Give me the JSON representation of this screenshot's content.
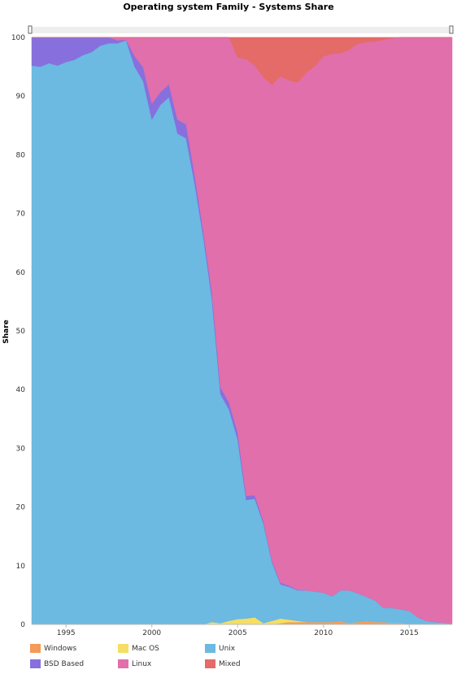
{
  "chart_data": {
    "type": "area",
    "stacked": "percent",
    "title": "Operating system Family - Systems Share",
    "xlabel": "",
    "ylabel": "Share",
    "xlim": [
      1993,
      2017.5
    ],
    "ylim": [
      0,
      100
    ],
    "x_ticks": [
      1995,
      2000,
      2005,
      2010,
      2015
    ],
    "y_ticks": [
      0,
      10,
      20,
      30,
      40,
      50,
      60,
      70,
      80,
      90,
      100
    ],
    "legend_position": "bottom-left",
    "x": [
      1993.0,
      1993.5,
      1994.0,
      1994.5,
      1995.0,
      1995.5,
      1996.0,
      1996.5,
      1997.0,
      1997.5,
      1998.0,
      1998.5,
      1999.0,
      1999.5,
      2000.0,
      2000.5,
      2001.0,
      2001.5,
      2002.0,
      2002.5,
      2003.0,
      2003.5,
      2004.0,
      2004.5,
      2005.0,
      2005.5,
      2006.0,
      2006.5,
      2007.0,
      2007.5,
      2008.0,
      2008.5,
      2009.0,
      2009.5,
      2010.0,
      2010.5,
      2011.0,
      2011.5,
      2012.0,
      2012.5,
      2013.0,
      2013.5,
      2014.0,
      2014.5,
      2015.0,
      2015.5,
      2016.0,
      2016.5,
      2017.0,
      2017.5
    ],
    "series": [
      {
        "name": "Windows",
        "color": "#f59a57",
        "values": [
          0,
          0,
          0,
          0,
          0,
          0,
          0,
          0,
          0,
          0,
          0,
          0,
          0,
          0,
          0,
          0,
          0,
          0,
          0,
          0,
          0,
          0,
          0,
          0,
          0,
          0,
          0,
          0,
          0,
          0.2,
          0.4,
          0.4,
          0.4,
          0.4,
          0.4,
          0.4,
          0.5,
          0.2,
          0.4,
          0.5,
          0.4,
          0.4,
          0.2,
          0.2,
          0,
          0,
          0,
          0,
          0,
          0
        ]
      },
      {
        "name": "Mac OS",
        "color": "#f5de63",
        "values": [
          0,
          0,
          0,
          0,
          0,
          0,
          0,
          0,
          0,
          0,
          0,
          0,
          0,
          0,
          0,
          0,
          0,
          0,
          0,
          0,
          0,
          0.4,
          0.2,
          0.6,
          0.9,
          1.0,
          1.2,
          0.2,
          0.6,
          0.8,
          0.4,
          0.2,
          0,
          0,
          0,
          0,
          0,
          0,
          0,
          0,
          0,
          0,
          0,
          0,
          0,
          0,
          0,
          0,
          0,
          0
        ]
      },
      {
        "name": "Unix",
        "color": "#6cb9e2",
        "values": [
          95.2,
          95,
          95.6,
          95.2,
          95.8,
          96.2,
          97,
          97.5,
          98.6,
          99,
          99,
          99.5,
          95,
          92.5,
          86,
          88.5,
          89.8,
          83.6,
          82.8,
          75,
          66,
          55,
          39,
          36,
          30.6,
          20.2,
          20.2,
          17,
          10,
          5.8,
          5.6,
          5.2,
          5.4,
          5.2,
          5,
          4.4,
          5.3,
          5.6,
          4.9,
          4.2,
          3.7,
          2.4,
          2.6,
          2.4,
          2.3,
          1.2,
          0.6,
          0.4,
          0.3,
          0.1
        ]
      },
      {
        "name": "BSD Based",
        "color": "#8770dd",
        "values": [
          4.8,
          5,
          4.4,
          4.8,
          4.2,
          3.8,
          3,
          2.5,
          1.4,
          1,
          0.5,
          0.1,
          1.8,
          2.4,
          2.7,
          2.2,
          2.2,
          2.4,
          2.4,
          1.5,
          1.0,
          1.2,
          1.2,
          1.2,
          1.2,
          0.7,
          0.6,
          0.4,
          0.3,
          0.3,
          0.2,
          0.1,
          0,
          0,
          0,
          0,
          0,
          0,
          0,
          0,
          0,
          0,
          0,
          0,
          0,
          0,
          0,
          0,
          0,
          0
        ]
      },
      {
        "name": "Linux",
        "color": "#e06fab",
        "values": [
          0,
          0,
          0,
          0,
          0,
          0,
          0,
          0,
          0,
          0,
          0.5,
          0.4,
          3.2,
          5.1,
          11.3,
          9.3,
          8,
          14,
          14.8,
          23.5,
          33,
          43.4,
          59.6,
          62.2,
          63.9,
          74.4,
          73.2,
          75.6,
          81.0,
          86.3,
          86.1,
          86.4,
          88.2,
          89.5,
          91.4,
          92.4,
          91.5,
          92.1,
          93.6,
          94.5,
          95.2,
          96.8,
          97.1,
          97.4,
          97.7,
          98.8,
          99.4,
          99.6,
          99.7,
          99.9
        ]
      },
      {
        "name": "Mixed",
        "color": "#e46b67",
        "values": [
          0,
          0,
          0,
          0,
          0,
          0,
          0,
          0,
          0,
          0,
          0,
          0,
          0,
          0,
          0,
          0,
          0,
          0,
          0,
          0,
          0,
          0,
          0,
          0,
          3.4,
          3.7,
          4.8,
          6.8,
          8.1,
          6.6,
          7.3,
          7.7,
          6.0,
          4.9,
          3.2,
          2.8,
          2.7,
          2.1,
          1.1,
          0.8,
          0.7,
          0.4,
          0.1,
          0,
          0,
          0,
          0,
          0,
          0,
          0
        ]
      }
    ]
  }
}
